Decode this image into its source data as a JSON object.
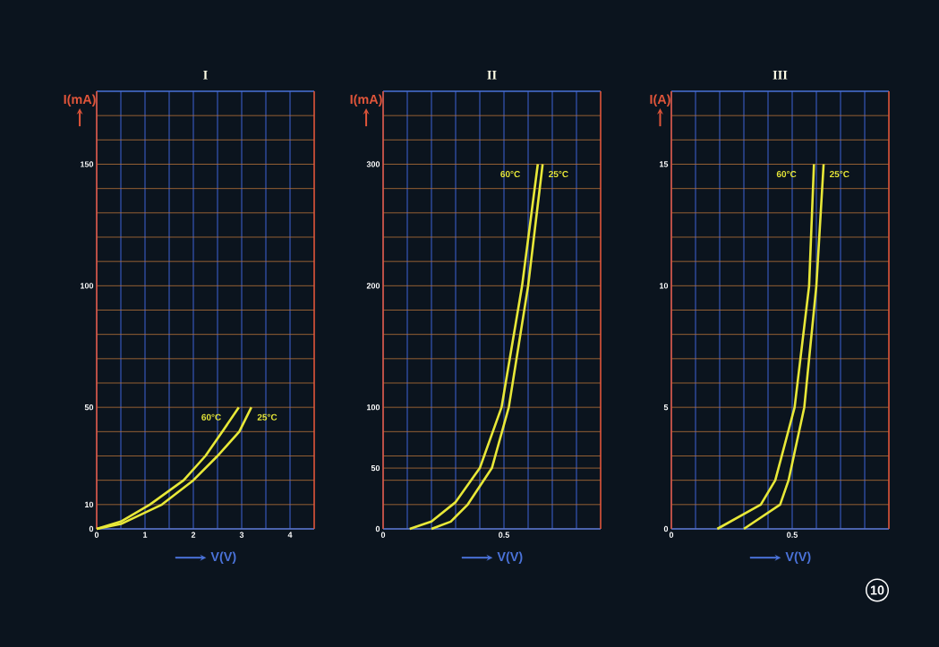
{
  "chart_data": [
    {
      "type": "line",
      "title": "I",
      "xlabel": "V(V)",
      "ylabel": "I(mA)",
      "xlim": [
        0,
        4.5
      ],
      "ylim": [
        0,
        180
      ],
      "grid": true,
      "xticks": [
        0,
        {
          "value": 0.5,
          "label": null
        },
        1,
        {
          "value": 1.5,
          "label": null
        },
        2,
        {
          "value": 2.5,
          "label": null
        },
        3,
        {
          "value": 3.5,
          "label": null
        },
        4
      ],
      "yticks": [
        0,
        10,
        {
          "value": 20,
          "label": null
        },
        {
          "value": 30,
          "label": null
        },
        {
          "value": 40,
          "label": null
        },
        50,
        {
          "value": 60,
          "label": null
        },
        {
          "value": 70,
          "label": null
        },
        {
          "value": 80,
          "label": null
        },
        {
          "value": 90,
          "label": null
        },
        100,
        {
          "value": 110,
          "label": null
        },
        {
          "value": 120,
          "label": null
        },
        {
          "value": 130,
          "label": null
        },
        {
          "value": 140,
          "label": null
        },
        150,
        {
          "value": 160,
          "label": null
        },
        {
          "value": 170,
          "label": null
        }
      ],
      "series": [
        {
          "name": "60°C",
          "color": "#e8e838",
          "x": [
            0,
            0.5,
            1.1,
            1.8,
            2.25,
            2.6,
            2.94
          ],
          "values": [
            0,
            3,
            10,
            20,
            30,
            40,
            50
          ]
        },
        {
          "name": "25°C",
          "color": "#e8e838",
          "x": [
            0,
            0.5,
            1.35,
            2.0,
            2.5,
            2.95,
            3.2
          ],
          "values": [
            0,
            2,
            10,
            20,
            30,
            40,
            50
          ]
        }
      ]
    },
    {
      "type": "line",
      "title": "II",
      "xlabel": "V(V)",
      "ylabel": "I(mA)",
      "xlim": [
        0,
        0.9
      ],
      "ylim": [
        0,
        360
      ],
      "grid": true,
      "xticks": [
        0,
        {
          "value": 0.1,
          "label": null
        },
        {
          "value": 0.2,
          "label": null
        },
        {
          "value": 0.3,
          "label": null
        },
        {
          "value": 0.4,
          "label": null
        },
        0.5,
        {
          "value": 0.6,
          "label": null
        },
        {
          "value": 0.7,
          "label": null
        },
        {
          "value": 0.8,
          "label": null
        }
      ],
      "yticks": [
        0,
        {
          "value": 20,
          "label": null
        },
        {
          "value": 40,
          "label": null
        },
        50,
        {
          "value": 60,
          "label": null
        },
        {
          "value": 80,
          "label": null
        },
        100,
        {
          "value": 120,
          "label": null
        },
        {
          "value": 140,
          "label": null
        },
        {
          "value": 160,
          "label": null
        },
        {
          "value": 180,
          "label": null
        },
        200,
        {
          "value": 220,
          "label": null
        },
        {
          "value": 240,
          "label": null
        },
        {
          "value": 260,
          "label": null
        },
        {
          "value": 280,
          "label": null
        },
        300,
        {
          "value": 320,
          "label": null
        },
        {
          "value": 340,
          "label": null
        }
      ],
      "series": [
        {
          "name": "60°C",
          "color": "#e8e838",
          "x": [
            0.11,
            0.2,
            0.3,
            0.4,
            0.49,
            0.575,
            0.64
          ],
          "values": [
            0,
            6,
            22,
            50,
            100,
            200,
            300
          ]
        },
        {
          "name": "25°C",
          "color": "#e8e838",
          "x": [
            0.2,
            0.28,
            0.35,
            0.45,
            0.52,
            0.6,
            0.66
          ],
          "values": [
            0,
            6,
            20,
            50,
            100,
            200,
            300
          ]
        }
      ]
    },
    {
      "type": "line",
      "title": "III",
      "xlabel": "V(V)",
      "ylabel": "I(A)",
      "xlim": [
        0,
        0.9
      ],
      "ylim": [
        0,
        18
      ],
      "grid": true,
      "xticks": [
        0,
        {
          "value": 0.1,
          "label": null
        },
        {
          "value": 0.2,
          "label": null
        },
        {
          "value": 0.3,
          "label": null
        },
        {
          "value": 0.4,
          "label": null
        },
        0.5,
        {
          "value": 0.6,
          "label": null
        },
        {
          "value": 0.7,
          "label": null
        },
        {
          "value": 0.8,
          "label": null
        }
      ],
      "yticks": [
        0,
        {
          "value": 1,
          "label": null
        },
        {
          "value": 2,
          "label": null
        },
        {
          "value": 3,
          "label": null
        },
        {
          "value": 4,
          "label": null
        },
        5,
        {
          "value": 6,
          "label": null
        },
        {
          "value": 7,
          "label": null
        },
        {
          "value": 8,
          "label": null
        },
        {
          "value": 9,
          "label": null
        },
        10,
        {
          "value": 11,
          "label": null
        },
        {
          "value": 12,
          "label": null
        },
        {
          "value": 13,
          "label": null
        },
        {
          "value": 14,
          "label": null
        },
        15,
        {
          "value": 16,
          "label": null
        },
        {
          "value": 17,
          "label": null
        }
      ],
      "annotations": [
        "10"
      ],
      "series": [
        {
          "name": "60°C",
          "color": "#e8e838",
          "x": [
            0.19,
            0.37,
            0.43,
            0.51,
            0.57,
            0.59
          ],
          "values": [
            0,
            1,
            2,
            5,
            10,
            15
          ]
        },
        {
          "name": "25°C",
          "color": "#e8e838",
          "x": [
            0.3,
            0.45,
            0.485,
            0.55,
            0.6,
            0.63
          ],
          "values": [
            0,
            1,
            2,
            5,
            10,
            15
          ]
        }
      ]
    }
  ]
}
